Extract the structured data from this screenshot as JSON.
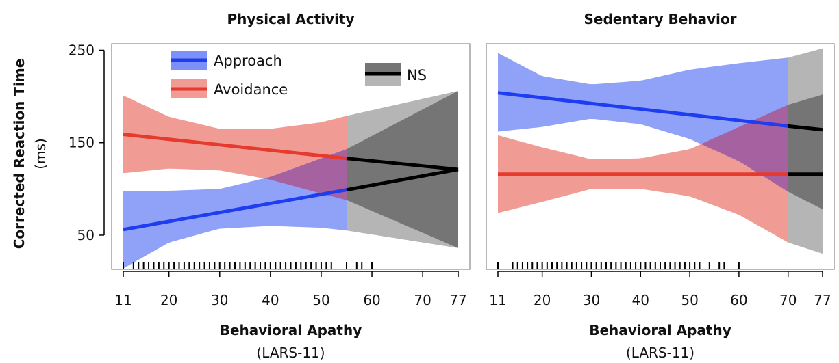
{
  "figure": {
    "ylabel": "Corrected Reaction Time",
    "yunit": "(ms)",
    "legend": {
      "approach": "Approach",
      "avoidance": "Avoidance",
      "ns": "NS"
    },
    "colors": {
      "approach_line": "#1f3df0",
      "approach_band": "#7d90f7",
      "avoidance_line": "#e63a2e",
      "avoidance_band": "#f09c94",
      "ns_line": "#000000",
      "ns_band_light": "#b5b5b5",
      "ns_band_dark": "#757575"
    }
  },
  "chart_data": [
    {
      "type": "line",
      "title": "Physical Activity",
      "xlabel": "Behavioral Apathy",
      "xunit": "(LARS-11)",
      "xlim": [
        11,
        77
      ],
      "ylim": [
        13,
        257
      ],
      "xticks": [
        11,
        20,
        30,
        40,
        50,
        60,
        70,
        77
      ],
      "yticks": [
        50,
        150,
        250
      ],
      "ns_threshold": 55,
      "series": [
        {
          "name": "Approach",
          "x": [
            11,
            55,
            77
          ],
          "y": [
            56,
            99,
            121
          ],
          "band_x": [
            11,
            20,
            30,
            40,
            50,
            55,
            77
          ],
          "band_low": [
            14,
            42,
            57,
            60,
            58,
            55,
            36
          ],
          "band_high": [
            98,
            98,
            100,
            113,
            133,
            143,
            206
          ]
        },
        {
          "name": "Avoidance",
          "x": [
            11,
            55,
            77
          ],
          "y": [
            159,
            133,
            121
          ],
          "band_x": [
            11,
            20,
            30,
            40,
            50,
            55,
            77
          ],
          "band_low": [
            117,
            122,
            120,
            110,
            95,
            88,
            36
          ],
          "band_high": [
            201,
            178,
            165,
            165,
            172,
            179,
            206
          ]
        }
      ],
      "rug": [
        11,
        13,
        14,
        15,
        16,
        17,
        18,
        19,
        20,
        21,
        22,
        23,
        24,
        25,
        26,
        27,
        28,
        29,
        30,
        31,
        32,
        33,
        34,
        35,
        36,
        37,
        38,
        39,
        40,
        41,
        42,
        43,
        44,
        45,
        46,
        47,
        48,
        49,
        50,
        51,
        52,
        55,
        57,
        58,
        60
      ]
    },
    {
      "type": "line",
      "title": "Sedentary Behavior",
      "xlabel": "Behavioral Apathy",
      "xunit": "(LARS-11)",
      "xlim": [
        11,
        77
      ],
      "ylim": [
        13,
        257
      ],
      "xticks": [
        11,
        20,
        30,
        40,
        50,
        60,
        70,
        77
      ],
      "yticks": [
        50,
        150,
        250
      ],
      "ns_threshold": 70,
      "series": [
        {
          "name": "Approach",
          "x": [
            11,
            70,
            77
          ],
          "y": [
            204,
            168,
            164
          ],
          "band_x": [
            11,
            20,
            30,
            40,
            50,
            60,
            70,
            77
          ],
          "band_low": [
            162,
            167,
            176,
            170,
            154,
            130,
            97,
            78
          ],
          "band_high": [
            247,
            222,
            213,
            217,
            229,
            236,
            242,
            252
          ]
        },
        {
          "name": "Avoidance",
          "x": [
            11,
            70,
            77
          ],
          "y": [
            116,
            116,
            116
          ],
          "band_x": [
            11,
            20,
            30,
            40,
            50,
            60,
            70,
            77
          ],
          "band_low": [
            74,
            86,
            100,
            100,
            92,
            72,
            42,
            30
          ],
          "band_high": [
            158,
            145,
            132,
            133,
            143,
            167,
            191,
            202
          ]
        }
      ],
      "rug": [
        11,
        14,
        15,
        16,
        17,
        18,
        19,
        20,
        21,
        22,
        23,
        24,
        25,
        26,
        27,
        28,
        29,
        30,
        31,
        32,
        33,
        34,
        35,
        36,
        37,
        38,
        39,
        40,
        41,
        42,
        43,
        44,
        45,
        46,
        47,
        48,
        49,
        50,
        51,
        52,
        54,
        56,
        57,
        60
      ]
    }
  ]
}
